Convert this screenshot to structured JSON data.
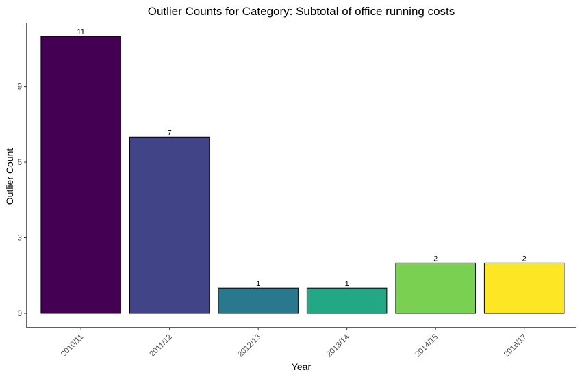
{
  "chart_data": {
    "type": "bar",
    "title": "Outlier Counts for Category: Subtotal of office running costs",
    "xlabel": "Year",
    "ylabel": "Outlier Count",
    "categories": [
      "2010/11",
      "2011/12",
      "2012/13",
      "2013/14",
      "2014/15",
      "2016/17"
    ],
    "values": [
      11,
      7,
      1,
      1,
      2,
      2
    ],
    "colors": [
      "#440154",
      "#414487",
      "#2a788e",
      "#22a884",
      "#7ad151",
      "#fde725"
    ],
    "ylim": [
      0,
      11.6
    ],
    "yticks": [
      0,
      3,
      6,
      9
    ],
    "grid": false,
    "legend": "none"
  }
}
